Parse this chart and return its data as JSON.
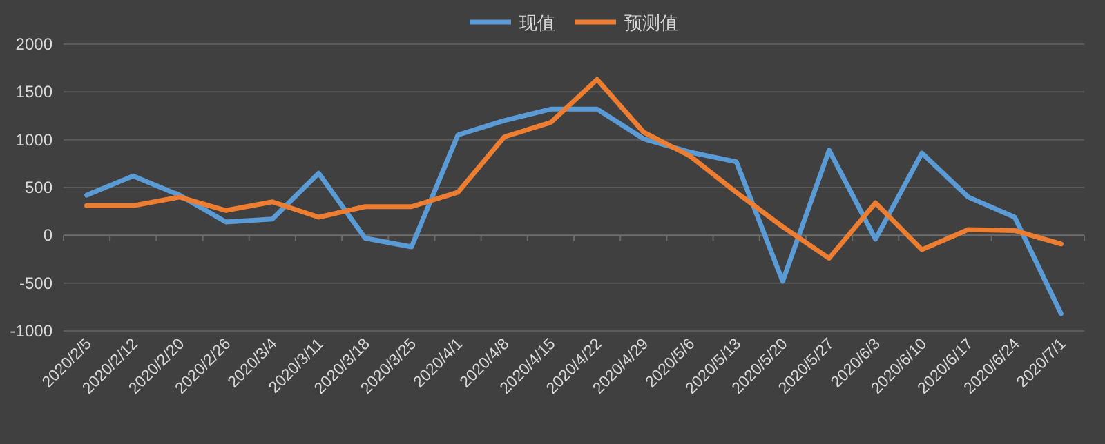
{
  "chart_data": {
    "type": "line",
    "categories": [
      "2020/2/5",
      "2020/2/12",
      "2020/2/20",
      "2020/2/26",
      "2020/3/4",
      "2020/3/11",
      "2020/3/18",
      "2020/3/25",
      "2020/4/1",
      "2020/4/8",
      "2020/4/15",
      "2020/4/22",
      "2020/4/29",
      "2020/5/6",
      "2020/5/13",
      "2020/5/20",
      "2020/5/27",
      "2020/6/3",
      "2020/6/10",
      "2020/6/17",
      "2020/6/24",
      "2020/7/1"
    ],
    "series": [
      {
        "name": "现值",
        "color": "#5b9bd5",
        "values": [
          420,
          620,
          420,
          140,
          170,
          650,
          -30,
          -120,
          1050,
          1200,
          1320,
          1320,
          1010,
          870,
          770,
          -480,
          890,
          -40,
          860,
          400,
          190,
          -820
        ]
      },
      {
        "name": "预测值",
        "color": "#ed7d31",
        "values": [
          310,
          310,
          400,
          260,
          350,
          190,
          300,
          300,
          450,
          1030,
          1180,
          1630,
          1080,
          830,
          450,
          90,
          -240,
          340,
          -150,
          60,
          50,
          -90
        ]
      }
    ],
    "ylim": [
      -1000,
      2000
    ],
    "yticks": [
      -1000,
      -500,
      0,
      500,
      1000,
      1500,
      2000
    ],
    "grid": "y",
    "legend": "top",
    "marker": "none",
    "line_style": "solid"
  }
}
